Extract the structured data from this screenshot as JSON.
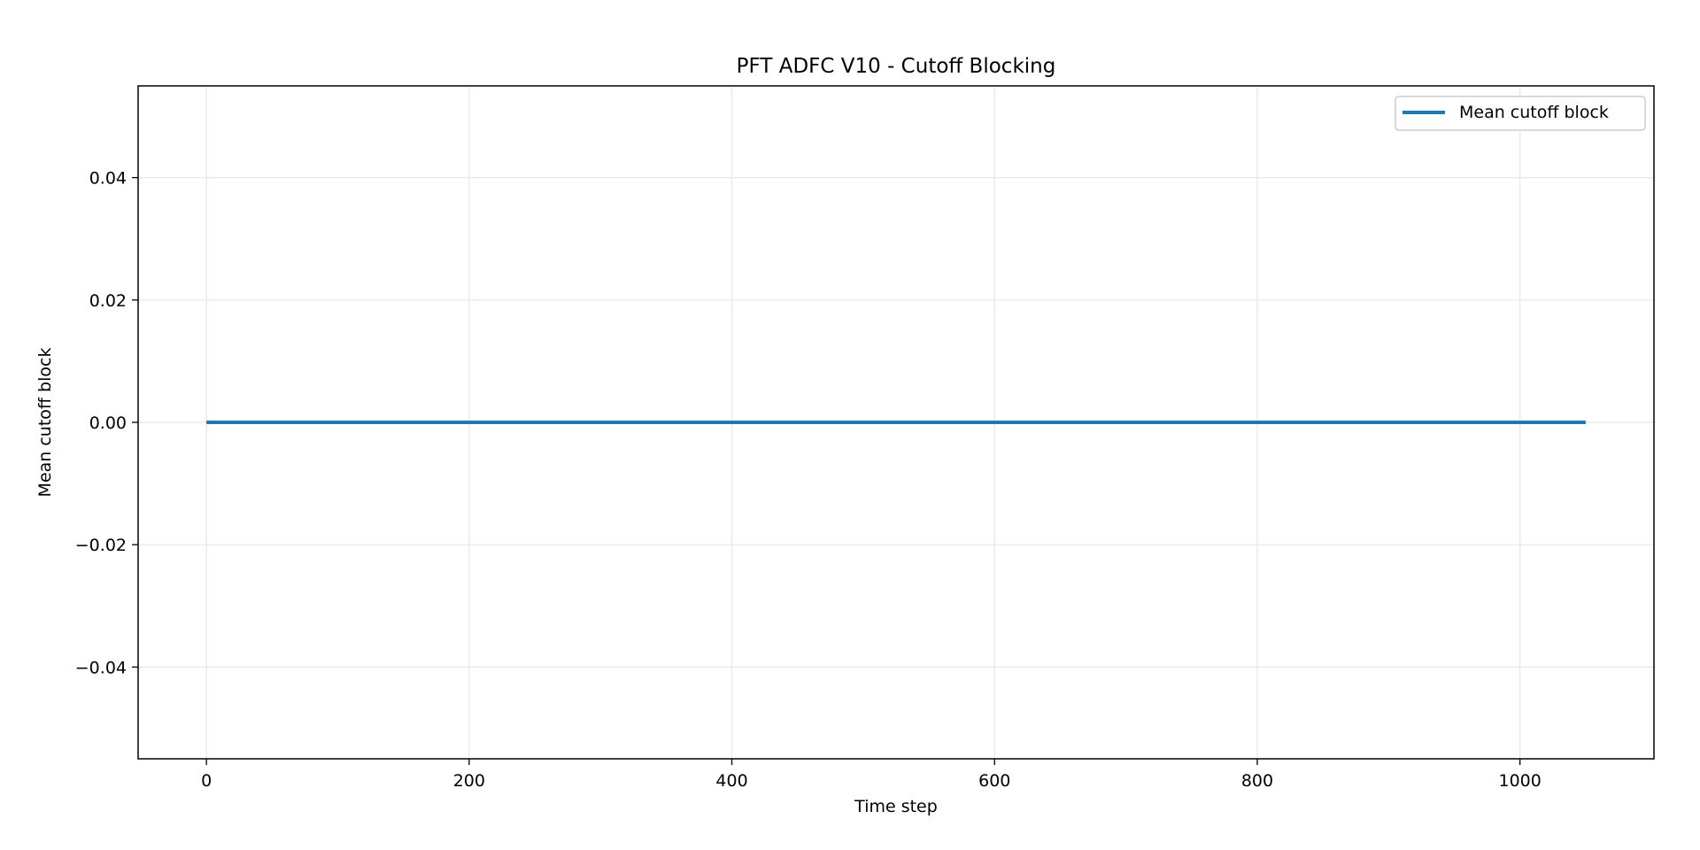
{
  "chart_data": {
    "type": "line",
    "title": "PFT ADFC V10 - Cutoff Blocking",
    "xlabel": "Time step",
    "ylabel": "Mean cutoff block",
    "xlim": [
      -52,
      1102
    ],
    "ylim": [
      -0.055,
      0.055
    ],
    "xticks": [
      0,
      200,
      400,
      600,
      800,
      1000
    ],
    "xtick_labels": [
      "0",
      "200",
      "400",
      "600",
      "800",
      "1000"
    ],
    "yticks": [
      0.04,
      0.02,
      0.0,
      -0.02,
      -0.04
    ],
    "ytick_labels": [
      "0.04",
      "0.02",
      "0.00",
      "−0.02",
      "−0.04"
    ],
    "grid": true,
    "legend_position": "top-right",
    "series": [
      {
        "name": "Mean cutoff block",
        "color": "#1f77b4",
        "x": [
          0,
          1050
        ],
        "y": [
          0.0,
          0.0
        ]
      }
    ]
  }
}
